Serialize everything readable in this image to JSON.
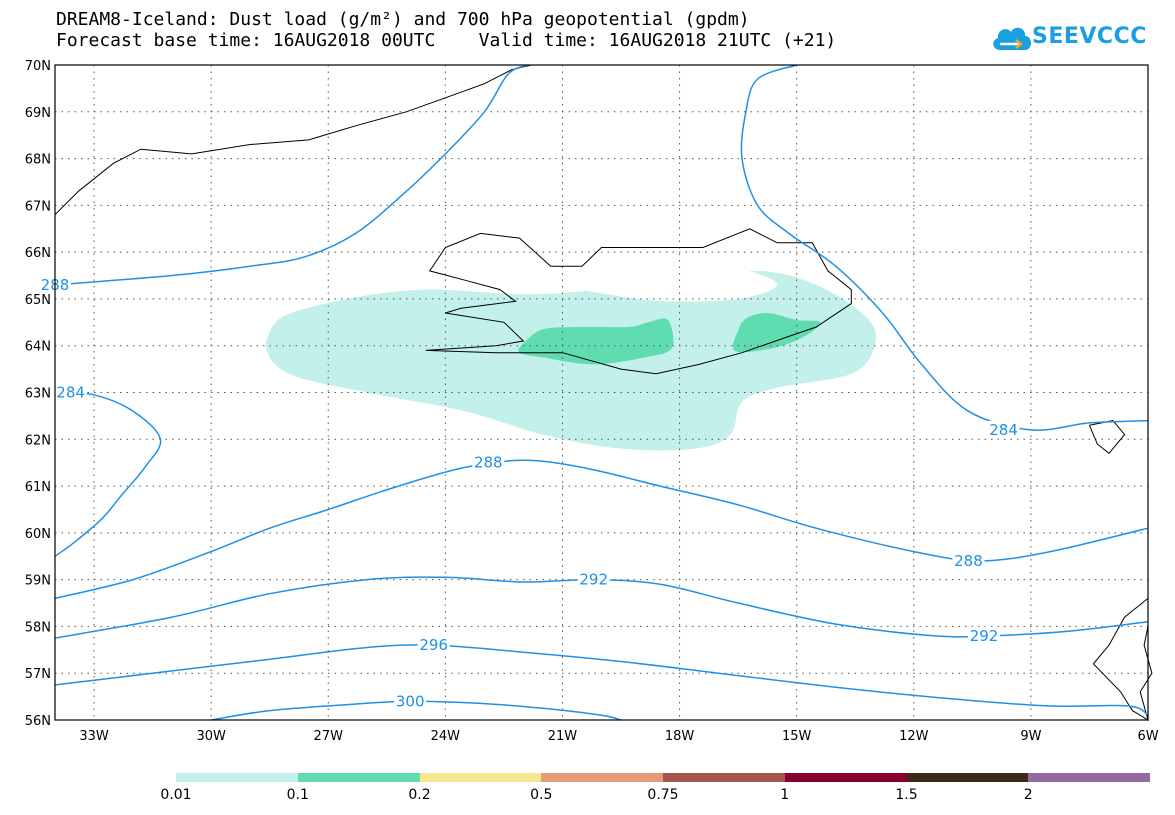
{
  "title_line1": "DREAM8-Iceland: Dust load (g/m²) and 700 hPa geopotential (gpdm)",
  "title_line2": "Forecast base time: 16AUG2018 00UTC    Valid time: 16AUG2018 21UTC (+21)",
  "logo_text": "SEEVCCC",
  "logo_icon": "cloud-icon",
  "map": {
    "lon_range": [
      -34,
      -6
    ],
    "lat_range": [
      56,
      70
    ],
    "x_ticks": [
      "33W",
      "30W",
      "27W",
      "24W",
      "21W",
      "18W",
      "15W",
      "12W",
      "9W",
      "6W"
    ],
    "y_ticks": [
      "70N",
      "69N",
      "68N",
      "67N",
      "66N",
      "65N",
      "64N",
      "63N",
      "62N",
      "61N",
      "60N",
      "59N",
      "58N",
      "57N",
      "56N"
    ],
    "contour_color": "#1e90e8",
    "contour_labels": [
      {
        "text": "288",
        "lon": -34.0,
        "lat": 65.3
      },
      {
        "text": "284",
        "lon": -33.6,
        "lat": 63.0
      },
      {
        "text": "284",
        "lon": -9.7,
        "lat": 62.2
      },
      {
        "text": "288",
        "lon": -22.9,
        "lat": 61.5
      },
      {
        "text": "288",
        "lon": -10.6,
        "lat": 59.4
      },
      {
        "text": "292",
        "lon": -20.2,
        "lat": 59.0
      },
      {
        "text": "292",
        "lon": -10.2,
        "lat": 57.8
      },
      {
        "text": "296",
        "lon": -24.3,
        "lat": 57.6
      },
      {
        "text": "300",
        "lon": -24.9,
        "lat": 56.4
      }
    ],
    "dust_low_color": "#c3f0ea",
    "dust_mid_color": "#5fdcb0"
  },
  "legend": {
    "colors": [
      "#c3f0ea",
      "#5fdcb0",
      "#f6e890",
      "#e89a74",
      "#a5544c",
      "#880030",
      "#3c2a17",
      "#946aa0"
    ],
    "labels": [
      "0.01",
      "0.1",
      "0.2",
      "0.5",
      "0.75",
      "1",
      "1.5",
      "2"
    ]
  }
}
